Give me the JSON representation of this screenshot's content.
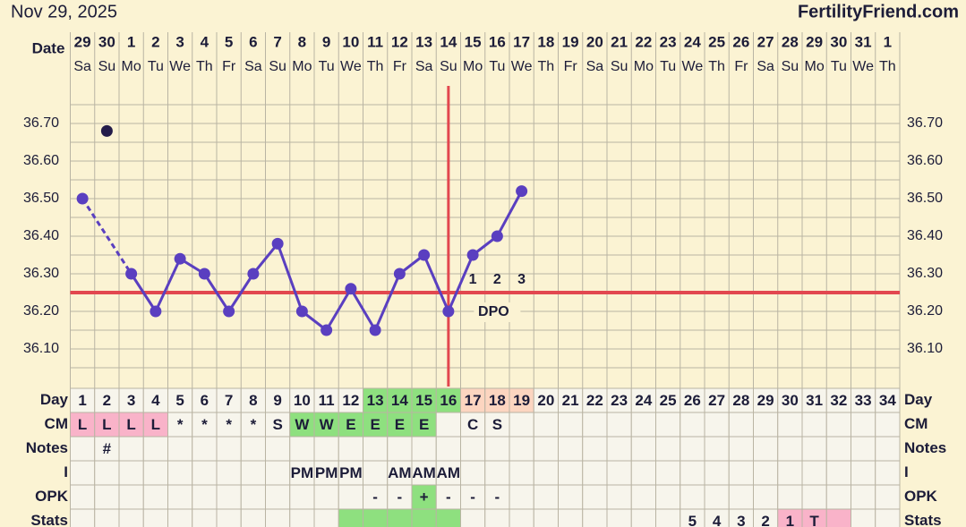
{
  "chart_data": {
    "type": "line",
    "title": "Nov 29, 2025",
    "source": "FertilityFriend.com",
    "date_label": "Date",
    "dates": [
      29,
      30,
      1,
      2,
      3,
      4,
      5,
      6,
      7,
      8,
      9,
      10,
      11,
      12,
      13,
      14,
      15,
      16,
      17,
      18,
      19,
      20,
      21,
      22,
      23,
      24,
      25,
      26,
      27,
      28,
      29,
      30,
      31,
      1
    ],
    "weekdays": [
      "Sa",
      "Su",
      "Mo",
      "Tu",
      "We",
      "Th",
      "Fr",
      "Sa",
      "Su",
      "Mo",
      "Tu",
      "We",
      "Th",
      "Fr",
      "Sa",
      "Su",
      "Mo",
      "Tu",
      "We",
      "Th",
      "Fr",
      "Sa",
      "Su",
      "Mo",
      "Tu",
      "We",
      "Th",
      "Fr",
      "Sa",
      "Su",
      "Mo",
      "Tu",
      "We",
      "Th"
    ],
    "day_label": "Day",
    "categories": [
      1,
      2,
      3,
      4,
      5,
      6,
      7,
      8,
      9,
      10,
      11,
      12,
      13,
      14,
      15,
      16,
      17,
      18,
      19,
      20,
      21,
      22,
      23,
      24,
      25,
      26,
      27,
      28,
      29,
      30,
      31,
      32,
      33,
      34
    ],
    "day_colors": [
      null,
      null,
      null,
      null,
      null,
      null,
      null,
      null,
      null,
      null,
      null,
      null,
      "#8ee07f",
      "#8ee07f",
      "#8ee07f",
      "#8ee07f",
      "#fcd5c0",
      "#fcd5c0",
      "#fcd5c0",
      null,
      null,
      null,
      null,
      null,
      null,
      null,
      null,
      null,
      null,
      null,
      null,
      null,
      null,
      null
    ],
    "series": [
      {
        "color": "#5a3fc0",
        "values": [
          36.5,
          null,
          36.3,
          36.2,
          36.34,
          36.3,
          36.2,
          36.3,
          36.38,
          36.2,
          36.15,
          36.26,
          36.15,
          36.3,
          36.35,
          36.2,
          36.35,
          36.4,
          36.52,
          null,
          null,
          null,
          null,
          null,
          null,
          null,
          null,
          null,
          null,
          null,
          null,
          null,
          null,
          null
        ]
      },
      {
        "color": "#241c4a",
        "values": [
          null,
          36.68,
          null,
          null,
          null,
          null,
          null,
          null,
          null,
          null,
          null,
          null,
          null,
          null,
          null,
          null,
          null,
          null,
          null,
          null,
          null,
          null,
          null,
          null,
          null,
          null,
          null,
          null,
          null,
          null,
          null,
          null,
          null,
          null
        ]
      }
    ],
    "ylim": [
      36.0,
      36.8
    ],
    "yticks": [
      {
        "value": 36.1,
        "label": "36.10"
      },
      {
        "value": 36.2,
        "label": "36.20"
      },
      {
        "value": 36.3,
        "label": "36.30"
      },
      {
        "value": 36.4,
        "label": "36.40"
      },
      {
        "value": 36.5,
        "label": "36.50"
      },
      {
        "value": 36.6,
        "label": "36.60"
      },
      {
        "value": 36.7,
        "label": "36.70"
      }
    ],
    "grid": true,
    "coverline": 36.25,
    "coverline_color": "#e2474f",
    "ovulation_day": 16,
    "dpo": [
      1,
      2,
      3
    ],
    "dpo_text": "DPO",
    "rows": [
      {
        "label": "CM",
        "cells": [
          "L",
          "L",
          "L",
          "L",
          "*",
          "*",
          "*",
          "*",
          "S",
          "W",
          "W",
          "E",
          "E",
          "E",
          "E",
          null,
          "C",
          "S",
          null,
          null,
          null,
          null,
          null,
          null,
          null,
          null,
          null,
          null,
          null,
          null,
          null,
          null,
          null,
          null
        ],
        "colors": [
          "#f9b3c9",
          "#f9b3c9",
          "#f9b3c9",
          "#f9b3c9",
          null,
          null,
          null,
          null,
          null,
          "#8ee07f",
          "#8ee07f",
          "#8ee07f",
          "#8ee07f",
          "#8ee07f",
          "#8ee07f",
          null,
          null,
          null,
          null,
          null,
          null,
          null,
          null,
          null,
          null,
          null,
          null,
          null,
          null,
          null,
          null,
          null,
          null,
          null
        ]
      },
      {
        "label": "Notes",
        "cells": [
          null,
          "#",
          null,
          null,
          null,
          null,
          null,
          null,
          null,
          null,
          null,
          null,
          null,
          null,
          null,
          null,
          null,
          null,
          null,
          null,
          null,
          null,
          null,
          null,
          null,
          null,
          null,
          null,
          null,
          null,
          null,
          null,
          null,
          null
        ]
      },
      {
        "label": "I",
        "cells": [
          null,
          null,
          null,
          null,
          null,
          null,
          null,
          null,
          null,
          "PM",
          "PM",
          "PM",
          null,
          "AM",
          "AM",
          "AM",
          null,
          null,
          null,
          null,
          null,
          null,
          null,
          null,
          null,
          null,
          null,
          null,
          null,
          null,
          null,
          null,
          null,
          null
        ]
      },
      {
        "label": "OPK",
        "cells": [
          null,
          null,
          null,
          null,
          null,
          null,
          null,
          null,
          null,
          null,
          null,
          null,
          "-",
          "-",
          "+",
          "-",
          "-",
          "-",
          null,
          null,
          null,
          null,
          null,
          null,
          null,
          null,
          null,
          null,
          null,
          null,
          null,
          null,
          null,
          null
        ],
        "colors": [
          null,
          null,
          null,
          null,
          null,
          null,
          null,
          null,
          null,
          null,
          null,
          null,
          null,
          null,
          "#8ee07f",
          null,
          null,
          null,
          null,
          null,
          null,
          null,
          null,
          null,
          null,
          null,
          null,
          null,
          null,
          null,
          null,
          null,
          null,
          null
        ]
      },
      {
        "label": "Stats",
        "cells": [
          null,
          null,
          null,
          null,
          null,
          null,
          null,
          null,
          null,
          null,
          null,
          null,
          null,
          null,
          null,
          null,
          null,
          null,
          null,
          null,
          null,
          null,
          null,
          null,
          null,
          5,
          4,
          3,
          2,
          1,
          "T",
          null,
          null,
          null
        ],
        "colors": [
          null,
          null,
          null,
          null,
          null,
          null,
          null,
          null,
          null,
          null,
          null,
          "#8ee07f",
          "#8ee07f",
          "#8ee07f",
          "#8ee07f",
          "#8ee07f",
          null,
          null,
          null,
          null,
          null,
          null,
          null,
          null,
          null,
          null,
          null,
          null,
          null,
          "#f9b3c9",
          "#f9b3c9",
          "#f9b3c9",
          null,
          null
        ]
      }
    ]
  }
}
